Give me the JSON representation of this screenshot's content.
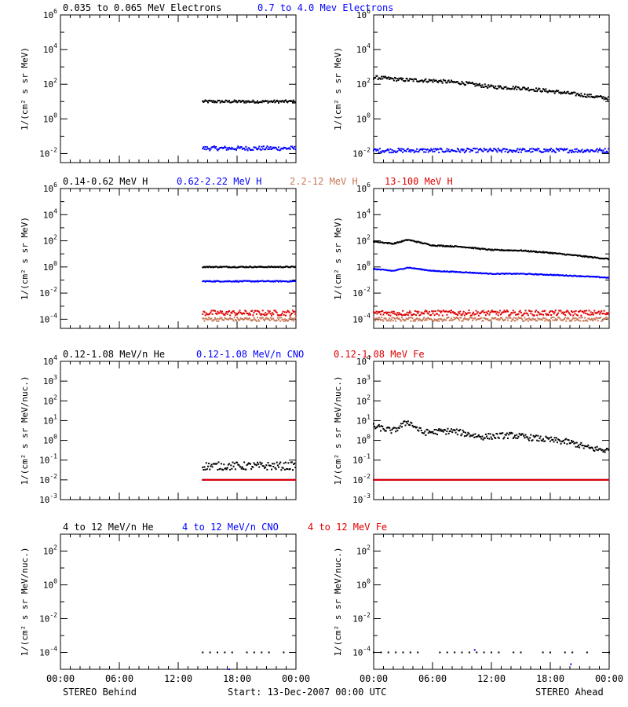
{
  "footer": {
    "left": "STEREO Behind",
    "center": "Start: 13-Dec-2007 00:00 UTC",
    "right": "STEREO Ahead"
  },
  "chart_data": [
    {
      "type": "scatter",
      "row": "electrons",
      "spacecraft": "STEREO Behind",
      "xlabel": "",
      "ylabel": "1/(cm² s sr MeV)",
      "yscale": "log",
      "ylim": [
        0.003,
        1000000
      ],
      "xticks": [
        "00:00",
        "06:00",
        "12:00",
        "18:00",
        "00:00"
      ],
      "legend": [
        {
          "label": "0.035 to 0.065 MeV Electrons",
          "color": "#000000"
        },
        {
          "label": "0.7 to 4.0 Mev Electrons",
          "color": "#0000ff"
        }
      ],
      "series": [
        {
          "name": "0.035 to 0.065 MeV Electrons",
          "color": "#000000",
          "x": [
            14.5,
            24
          ],
          "y": [
            10,
            10
          ],
          "jitter": 0.08
        },
        {
          "name": "0.7 to 4.0 Mev Electrons",
          "color": "#0000ff",
          "x": [
            14.5,
            24
          ],
          "y": [
            0.02,
            0.02
          ],
          "jitter": 0.12
        }
      ]
    },
    {
      "type": "scatter",
      "row": "electrons",
      "spacecraft": "STEREO Ahead",
      "xlabel": "",
      "ylabel": "1/(cm² s sr MeV)",
      "yscale": "log",
      "ylim": [
        0.003,
        1000000
      ],
      "xticks": [
        "00:00",
        "06:00",
        "12:00",
        "18:00",
        "00:00"
      ],
      "series": [
        {
          "name": "0.035 to 0.065 MeV Electrons",
          "color": "#000000",
          "x": [
            0,
            3,
            6,
            9,
            12,
            15,
            18,
            21,
            24
          ],
          "y": [
            250,
            180,
            160,
            120,
            70,
            60,
            40,
            25,
            15
          ],
          "jitter": 0.1
        },
        {
          "name": "0.7 to 4.0 Mev Electrons",
          "color": "#0000ff",
          "x": [
            0,
            24
          ],
          "y": [
            0.015,
            0.015
          ],
          "jitter": 0.12
        }
      ]
    },
    {
      "type": "scatter",
      "row": "protons",
      "spacecraft": "STEREO Behind",
      "xlabel": "",
      "ylabel": "1/(cm² s sr MeV)",
      "yscale": "log",
      "ylim": [
        2e-05,
        1000000
      ],
      "xticks": [
        "00:00",
        "06:00",
        "12:00",
        "18:00",
        "00:00"
      ],
      "legend": [
        {
          "label": "0.14-0.62 MeV H",
          "color": "#000000"
        },
        {
          "label": "0.62-2.22 MeV H",
          "color": "#0000ff"
        },
        {
          "label": "2.2-12 MeV H",
          "color": "#c87858"
        },
        {
          "label": "13-100 MeV H",
          "color": "#e00000"
        }
      ],
      "series": [
        {
          "name": "0.14-0.62 MeV H",
          "color": "#000000",
          "x": [
            14.5,
            24
          ],
          "y": [
            1,
            1
          ],
          "jitter": 0.04
        },
        {
          "name": "0.62-2.22 MeV H",
          "color": "#0000ff",
          "x": [
            14.5,
            24
          ],
          "y": [
            0.08,
            0.08
          ],
          "jitter": 0.04
        },
        {
          "name": "2.2-12 MeV H",
          "color": "#c87858",
          "x": [
            14.5,
            24
          ],
          "y": [
            0.0001,
            0.0001
          ],
          "jitter": 0.15
        },
        {
          "name": "13-100 MeV H",
          "color": "#e00000",
          "x": [
            14.5,
            24
          ],
          "y": [
            0.0003,
            0.0003
          ],
          "jitter": 0.2
        }
      ]
    },
    {
      "type": "scatter",
      "row": "protons",
      "spacecraft": "STEREO Ahead",
      "xlabel": "",
      "ylabel": "1/(cm² s sr MeV)",
      "yscale": "log",
      "ylim": [
        2e-05,
        1000000
      ],
      "xticks": [
        "00:00",
        "06:00",
        "12:00",
        "18:00",
        "00:00"
      ],
      "series": [
        {
          "name": "0.14-0.62 MeV H",
          "color": "#000000",
          "x": [
            0,
            2,
            3.5,
            6,
            9,
            12,
            15,
            18,
            21,
            24
          ],
          "y": [
            90,
            60,
            120,
            45,
            35,
            20,
            18,
            12,
            7,
            4
          ],
          "jitter": 0.04
        },
        {
          "name": "0.62-2.22 MeV H",
          "color": "#0000ff",
          "x": [
            0,
            2,
            3.5,
            6,
            9,
            12,
            15,
            18,
            21,
            24
          ],
          "y": [
            0.7,
            0.5,
            0.9,
            0.5,
            0.4,
            0.3,
            0.3,
            0.25,
            0.2,
            0.15
          ],
          "jitter": 0.03
        },
        {
          "name": "2.2-12 MeV H",
          "color": "#c87858",
          "x": [
            0,
            24
          ],
          "y": [
            0.0001,
            0.0001
          ],
          "jitter": 0.15
        },
        {
          "name": "13-100 MeV H",
          "color": "#e00000",
          "x": [
            0,
            24
          ],
          "y": [
            0.0003,
            0.0003
          ],
          "jitter": 0.2
        }
      ]
    },
    {
      "type": "scatter",
      "row": "heavy-low",
      "spacecraft": "STEREO Behind",
      "xlabel": "",
      "ylabel": "1/(cm² s sr MeV/nuc.)",
      "yscale": "log",
      "ylim": [
        0.001,
        10000
      ],
      "xticks": [
        "00:00",
        "06:00",
        "12:00",
        "18:00",
        "00:00"
      ],
      "legend": [
        {
          "label": "0.12-1.08 MeV/n He",
          "color": "#000000"
        },
        {
          "label": "0.12-1.08 MeV/n CNO",
          "color": "#0000ff"
        },
        {
          "label": "0.12-1.08 MeV Fe",
          "color": "#e00000"
        }
      ],
      "series": [
        {
          "name": "0.12-1.08 MeV/n He",
          "color": "#000000",
          "x": [
            14.5,
            24
          ],
          "y": [
            0.05,
            0.05
          ],
          "jitter": 0.2
        },
        {
          "name": "0.12-1.08 MeV/n CNO",
          "color": "#0000ff",
          "x": [
            14.5,
            24
          ],
          "y": [
            0.01,
            0.01
          ],
          "jitter": 0
        },
        {
          "name": "0.12-1.08 MeV Fe",
          "color": "#e00000",
          "x": [
            14.5,
            24
          ],
          "y": [
            0.01,
            0.01
          ],
          "jitter": 0
        }
      ]
    },
    {
      "type": "scatter",
      "row": "heavy-low",
      "spacecraft": "STEREO Ahead",
      "xlabel": "",
      "ylabel": "1/(cm² s sr MeV/nuc.)",
      "yscale": "log",
      "ylim": [
        0.001,
        10000
      ],
      "xticks": [
        "00:00",
        "06:00",
        "12:00",
        "18:00",
        "00:00"
      ],
      "series": [
        {
          "name": "0.12-1.08 MeV/n He",
          "color": "#000000",
          "x": [
            0,
            2,
            3.5,
            5,
            8,
            11,
            14,
            17,
            20,
            22,
            24
          ],
          "y": [
            5,
            3,
            9,
            2.5,
            3,
            1.5,
            1.8,
            1.2,
            0.8,
            0.4,
            0.3
          ],
          "jitter": 0.15
        },
        {
          "name": "0.12-1.08 MeV/n CNO",
          "color": "#0000ff",
          "x": [
            0,
            24
          ],
          "y": [
            0.01,
            0.01
          ],
          "jitter": 0
        },
        {
          "name": "0.12-1.08 MeV Fe",
          "color": "#e00000",
          "x": [
            0,
            24
          ],
          "y": [
            0.01,
            0.01
          ],
          "jitter": 0
        }
      ]
    },
    {
      "type": "scatter",
      "row": "heavy-high",
      "spacecraft": "STEREO Behind",
      "xlabel": "",
      "ylabel": "1/(cm² s sr MeV/nuc.)",
      "yscale": "log",
      "ylim": [
        1e-05,
        1000
      ],
      "xticks": [
        "00:00",
        "06:00",
        "12:00",
        "18:00",
        "00:00"
      ],
      "legend": [
        {
          "label": "4 to 12 MeV/n He",
          "color": "#000000"
        },
        {
          "label": "4 to 12 MeV/n CNO",
          "color": "#0000ff"
        },
        {
          "label": "4 to 12 MeV Fe",
          "color": "#e00000"
        }
      ],
      "series": [
        {
          "name": "4 to 12 MeV/n He",
          "color": "#000000",
          "x": [
            14.5,
            24
          ],
          "y": [
            0.0001,
            0.0001
          ],
          "jitter": 0
        },
        {
          "name": "4 to 12 MeV/n CNO",
          "color": "#0000ff",
          "x": [
            17.2
          ],
          "y": [
            1e-05
          ],
          "jitter": 0
        }
      ]
    },
    {
      "type": "scatter",
      "row": "heavy-high",
      "spacecraft": "STEREO Ahead",
      "xlabel": "",
      "ylabel": "1/(cm² s sr MeV/nuc.)",
      "yscale": "log",
      "ylim": [
        1e-05,
        1000
      ],
      "xticks": [
        "00:00",
        "06:00",
        "12:00",
        "18:00",
        "00:00"
      ],
      "series": [
        {
          "name": "4 to 12 MeV/n He",
          "color": "#000000",
          "x": [
            0,
            24
          ],
          "y": [
            0.0001,
            0.0001
          ],
          "jitter": 0
        },
        {
          "name": "4 to 12 MeV/n CNO",
          "color": "#0000ff",
          "x": [
            10.3,
            20.1
          ],
          "y": [
            0.00014,
            2e-05
          ],
          "jitter": 0
        }
      ]
    }
  ]
}
